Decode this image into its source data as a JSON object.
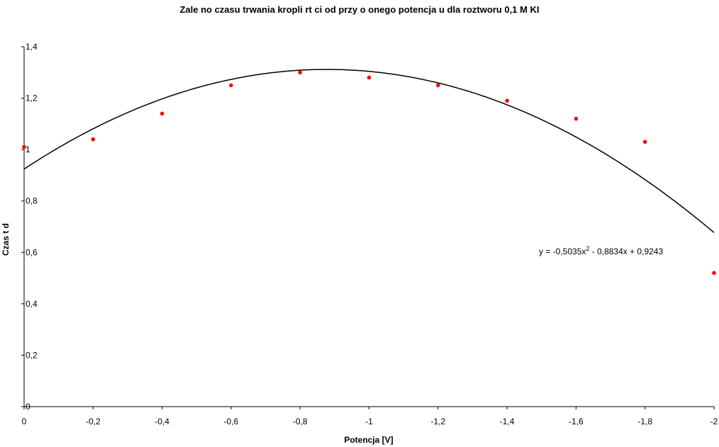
{
  "chart_data": {
    "type": "scatter",
    "title": "Zale no     czasu trwania kropli rt  ci od przy o  onego potencja u dla roztworu 0,1 M KI",
    "xlabel": "Potencja  [V]",
    "ylabel": "Czas t  d",
    "xlim": [
      0,
      -2
    ],
    "ylim": [
      0,
      1.4
    ],
    "x_ticks": [
      0,
      -0.2,
      -0.4,
      -0.6,
      -0.8,
      -1,
      -1.2,
      -1.4,
      -1.6,
      -1.8,
      -2
    ],
    "x_tick_labels": [
      "0",
      "-0,2",
      "-0,4",
      "-0,6",
      "-0,8",
      "-1",
      "-1,2",
      "-1,4",
      "-1,6",
      "-1,8",
      "-2"
    ],
    "y_ticks": [
      0,
      0.2,
      0.4,
      0.6,
      0.8,
      1,
      1.2,
      1.4
    ],
    "y_tick_labels": [
      "0",
      "0,2",
      "0,4",
      "0,6",
      "0,8",
      "1",
      "1,2",
      "1,4"
    ],
    "grid": false,
    "series": [
      {
        "x": [
          0,
          -0.2,
          -0.4,
          -0.6,
          -0.8,
          -1,
          -1.2,
          -1.4,
          -1.6,
          -1.8,
          -2
        ],
        "y": [
          1.01,
          1.04,
          1.14,
          1.25,
          1.3,
          1.28,
          1.25,
          1.19,
          1.12,
          1.03,
          0.52
        ],
        "color": "#ff0000"
      }
    ],
    "trendline": {
      "type": "polynomial",
      "coefficients": [
        -0.5035,
        -0.8834,
        0.9243
      ],
      "equation_prefix": "y = -0,5035x",
      "equation_exponent": "2",
      "equation_suffix": " - 0,8834x + 0,9243",
      "color": "#000000"
    }
  }
}
